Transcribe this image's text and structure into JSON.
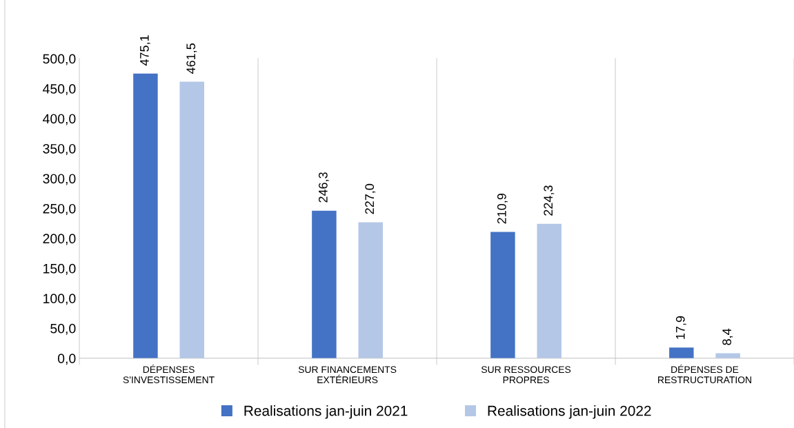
{
  "chart_data": {
    "type": "bar",
    "categories": [
      "DÉPENSES\nS'INVESTISSEMENT",
      "SUR FINANCEMENTS\nEXTÉRIEURS",
      "SUR RESSOURCES\nPROPRES",
      "DÉPENSES DE\nRESTRUCTURATION"
    ],
    "series": [
      {
        "name": "Realisations jan-juin 2021",
        "color": "#4472c4",
        "values": [
          475.1,
          246.3,
          210.9,
          17.9
        ],
        "value_labels": [
          "475,1",
          "246,3",
          "210,9",
          "17,9"
        ]
      },
      {
        "name": "Realisations jan-juin 2022",
        "color": "#b4c7e7",
        "values": [
          461.5,
          227.0,
          224.3,
          8.4
        ],
        "value_labels": [
          "461,5",
          "227,0",
          "224,3",
          "8,4"
        ]
      }
    ],
    "ylim": [
      0,
      500
    ],
    "yticks": [
      {
        "value": 0,
        "label": "0,0"
      },
      {
        "value": 50,
        "label": "50,0"
      },
      {
        "value": 100,
        "label": "100,0"
      },
      {
        "value": 150,
        "label": "150,0"
      },
      {
        "value": 200,
        "label": "200,0"
      },
      {
        "value": 250,
        "label": "250,0"
      },
      {
        "value": 300,
        "label": "300,0"
      },
      {
        "value": 350,
        "label": "350,0"
      },
      {
        "value": 400,
        "label": "400,0"
      },
      {
        "value": 450,
        "label": "450,0"
      },
      {
        "value": 500,
        "label": "500,0"
      }
    ],
    "grid": "x",
    "legend": "bottom"
  }
}
